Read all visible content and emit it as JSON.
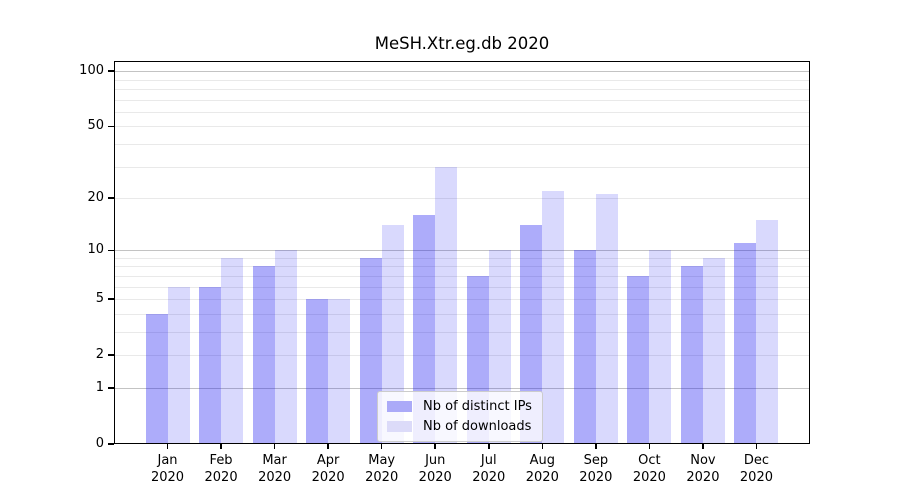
{
  "title": "MeSH.Xtr.eg.db 2020",
  "chart_data": {
    "type": "bar",
    "title": "MeSH.Xtr.eg.db 2020",
    "categories": [
      "Jan",
      "Feb",
      "Mar",
      "Apr",
      "May",
      "Jun",
      "Jul",
      "Aug",
      "Sep",
      "Oct",
      "Nov",
      "Dec"
    ],
    "category_year": "2020",
    "series": [
      {
        "name": "Nb of distinct IPs",
        "values": [
          4,
          6,
          8,
          5,
          9,
          16,
          7,
          14,
          10,
          7,
          8,
          11
        ]
      },
      {
        "name": "Nb of downloads",
        "values": [
          6,
          9,
          10,
          5,
          14,
          30,
          10,
          22,
          21,
          10,
          9,
          15
        ]
      }
    ],
    "xlabel": "",
    "ylabel": "",
    "y_axis": {
      "scale": "log1p",
      "tick_values": [
        0,
        1,
        2,
        5,
        10,
        20,
        50,
        100
      ],
      "major_gridline_values": [
        1,
        10,
        100
      ],
      "minor_gridline_values": [
        2,
        3,
        4,
        5,
        6,
        7,
        8,
        9,
        20,
        30,
        40,
        50,
        60,
        70,
        80,
        90
      ],
      "ylim_top": 112
    },
    "legend": {
      "entries": [
        "Nb of distinct IPs",
        "Nb of downloads"
      ],
      "position": "lower center-right inside plot"
    },
    "grid": "on"
  },
  "colors": {
    "ips_bar": "rgba(20,16,240,0.35)",
    "downloads_bar": "rgba(20,16,240,0.16)",
    "ips_swatch": "#abaaf8",
    "downloads_swatch": "#dcdbf9",
    "major_grid": "#c3c3c3",
    "minor_grid": "#e9e9e9",
    "spine": "#000000"
  }
}
